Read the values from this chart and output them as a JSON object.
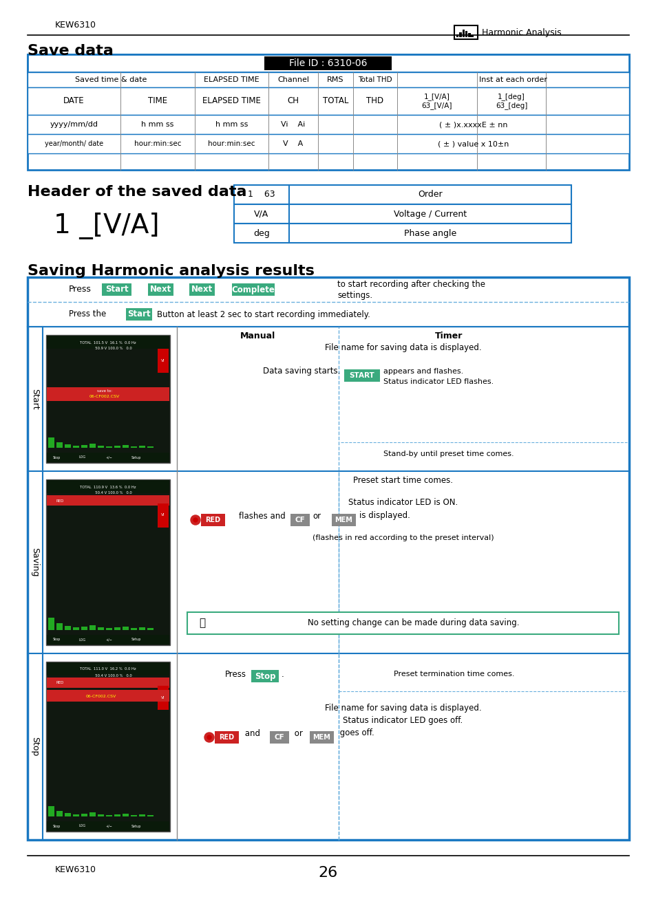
{
  "page_title_left": "KEW6310",
  "page_title_right": "Harmonic Analysis",
  "section1_title": "Save data",
  "section2_title": "Header of the saved data",
  "section3_title": "Saving Harmonic analysis results",
  "file_id": "File ID : 6310-06",
  "header_table": [
    [
      "1    63",
      "Order"
    ],
    [
      "V/A",
      "Voltage / Current"
    ],
    [
      "deg",
      "Phase angle"
    ]
  ],
  "blue_border": "#1a78c2",
  "green_button": "#3aaa7e",
  "dotted_blue": "#6ab0de",
  "page_number": "26"
}
